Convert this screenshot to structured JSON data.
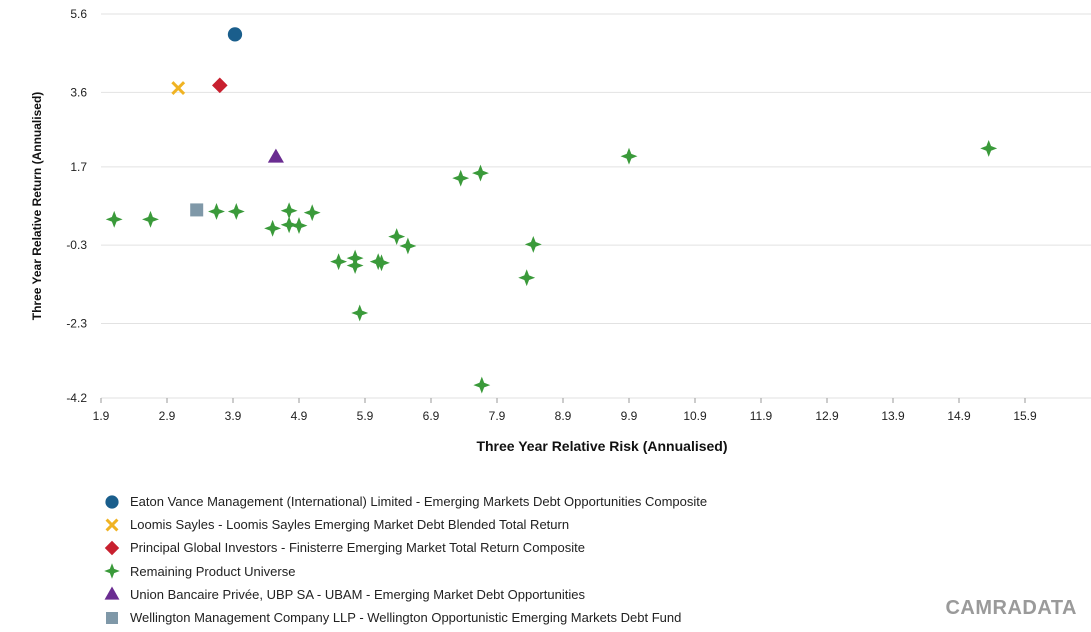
{
  "chart_data": {
    "type": "scatter",
    "title": "",
    "xlabel": "Three Year Relative Risk (Annualised)",
    "ylabel": "Three Year Relative Return (Annualised)",
    "xlim": [
      1.9,
      16.9
    ],
    "ylim": [
      -4.2,
      5.6
    ],
    "x_ticks": [
      "1.9",
      "2.9",
      "3.9",
      "4.9",
      "5.9",
      "6.9",
      "7.9",
      "8.9",
      "9.9",
      "10.9",
      "11.9",
      "12.9",
      "13.9",
      "14.9",
      "15.9"
    ],
    "y_ticks": [
      "5.6",
      "3.6",
      "1.7",
      "-0.3",
      "-2.3",
      "-4.2"
    ],
    "grid": "horizontal",
    "legend_position": "bottom-left",
    "series": [
      {
        "name": "Eaton Vance Management (International) Limited - Emerging Markets Debt Opportunities Composite",
        "marker": "circle",
        "color": "#1a5e8c",
        "points": [
          [
            3.93,
            5.08
          ]
        ]
      },
      {
        "name": "Loomis Sayles - Loomis Sayles Emerging Market Debt Blended Total Return",
        "marker": "x",
        "color": "#f0b323",
        "points": [
          [
            3.07,
            3.71
          ]
        ]
      },
      {
        "name": "Principal Global Investors - Finisterre Emerging Market Total Return Composite",
        "marker": "diamond",
        "color": "#c8202f",
        "points": [
          [
            3.7,
            3.78
          ]
        ]
      },
      {
        "name": "Remaining Product Universe",
        "marker": "star4",
        "color": "#3a9a3a",
        "points": [
          [
            2.1,
            0.36
          ],
          [
            2.65,
            0.36
          ],
          [
            3.65,
            0.56
          ],
          [
            3.95,
            0.56
          ],
          [
            4.5,
            0.13
          ],
          [
            4.75,
            0.58
          ],
          [
            4.75,
            0.22
          ],
          [
            4.9,
            0.2
          ],
          [
            5.1,
            0.53
          ],
          [
            5.5,
            -0.72
          ],
          [
            5.75,
            -0.63
          ],
          [
            5.75,
            -0.82
          ],
          [
            5.82,
            -2.03
          ],
          [
            6.1,
            -0.72
          ],
          [
            6.15,
            -0.75
          ],
          [
            6.38,
            -0.08
          ],
          [
            6.55,
            -0.32
          ],
          [
            7.35,
            1.41
          ],
          [
            7.65,
            1.54
          ],
          [
            7.67,
            -3.87
          ],
          [
            8.35,
            -1.13
          ],
          [
            8.45,
            -0.28
          ],
          [
            9.9,
            1.97
          ],
          [
            15.35,
            2.17
          ]
        ]
      },
      {
        "name": "Union Bancaire Privée, UBP SA - UBAM - Emerging Market Debt Opportunities",
        "marker": "triangle",
        "color": "#6a2c91",
        "points": [
          [
            4.55,
            1.96
          ]
        ]
      },
      {
        "name": "Wellington Management Company LLP - Wellington Opportunistic Emerging Markets Debt Fund",
        "marker": "square",
        "color": "#7f98a8",
        "points": [
          [
            3.35,
            0.6
          ]
        ]
      }
    ]
  },
  "brand": {
    "text": "CAMRADATA"
  }
}
